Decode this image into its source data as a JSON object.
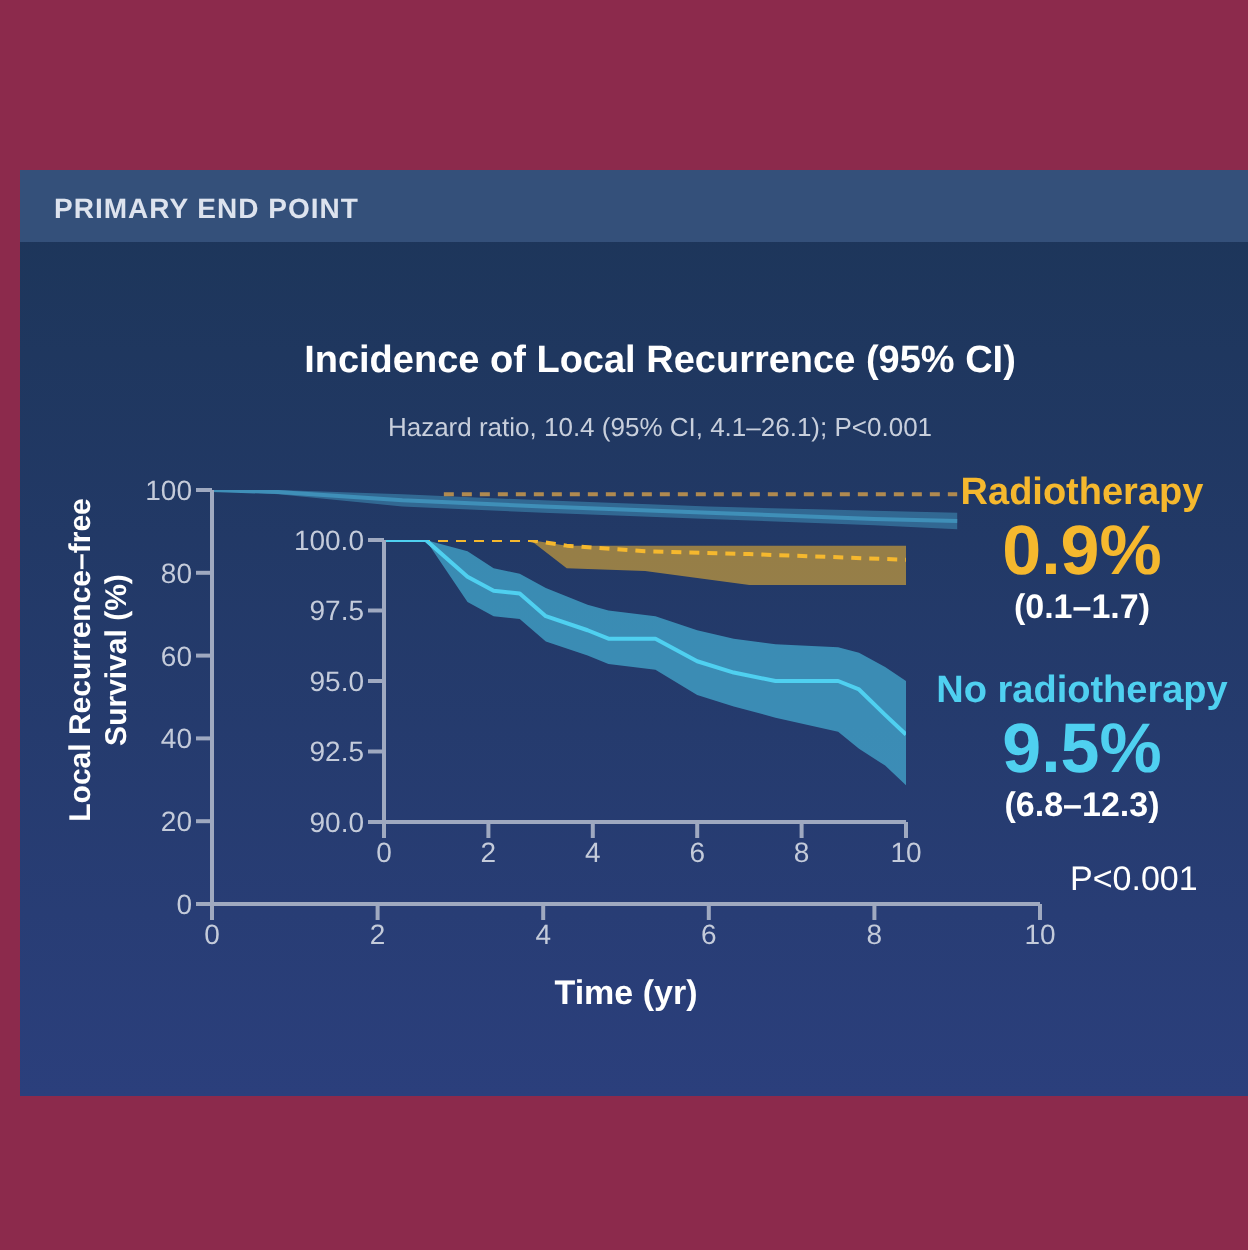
{
  "chart_data": [
    {
      "type": "line",
      "title": "Incidence of Local Recurrence (95% CI)",
      "subtitle": "Hazard ratio, 10.4 (95% CI, 4.1–26.1); P<0.001",
      "xlabel": "Time (yr)",
      "ylabel": "Local Recurrence–free Survival (%)",
      "xlim": [
        0,
        10
      ],
      "xticks": [
        0,
        2,
        4,
        6,
        8,
        10
      ],
      "ylim": [
        0,
        100
      ],
      "yticks": [
        0,
        20,
        40,
        60,
        80,
        100
      ],
      "marker": "none",
      "annotations": [
        "PRIMARY END POINT",
        "P<0.001"
      ],
      "series": [
        {
          "color": "#b08a50",
          "line_style": "dashed",
          "x": [
            2.8,
            9
          ],
          "values": [
            99,
            99
          ]
        },
        {
          "color": "#3f8fb8",
          "line_style": "solid",
          "x": [
            0,
            0.8,
            2.3,
            4,
            6,
            8,
            9
          ],
          "values": [
            100,
            99.5,
            97.5,
            96,
            94.5,
            93,
            92.5
          ],
          "lower": [
            100,
            99,
            96,
            94.5,
            93,
            91.5,
            90.5
          ],
          "upper": [
            100,
            100,
            99,
            97.5,
            96,
            95,
            94.5
          ]
        }
      ]
    },
    {
      "type": "line",
      "xlim": [
        0,
        10
      ],
      "xticks": [
        0,
        2,
        4,
        6,
        8,
        10
      ],
      "ylim": [
        90,
        100
      ],
      "yticks": [
        {
          "value": 90,
          "label": "90.0"
        },
        {
          "value": 92.5,
          "label": "92.5"
        },
        {
          "value": 95,
          "label": "95.0"
        },
        {
          "value": 97.5,
          "label": "97.5"
        },
        {
          "value": 100,
          "label": "100.0"
        }
      ],
      "marker": "none",
      "annotations": [
        "0.9%",
        "(0.1–1.7)",
        "9.5%",
        "(6.8–12.3)"
      ],
      "series": [
        {
          "name": "Radiotherapy",
          "color": "#f5b82e",
          "line_style": "dashed",
          "x": [
            0,
            2.8,
            3.5,
            5,
            7,
            10
          ],
          "values": [
            100,
            100,
            99.8,
            99.6,
            99.5,
            99.3
          ],
          "lower": [
            100,
            100,
            99,
            98.9,
            98.4,
            98.4
          ],
          "upper": [
            100,
            100,
            99.8,
            99.8,
            99.8,
            99.8
          ]
        },
        {
          "name": "No radiotherapy",
          "color": "#4fd0f0",
          "line_style": "solid",
          "x": [
            0,
            0.8,
            1.6,
            2.1,
            2.6,
            3.1,
            3.9,
            4.3,
            5.2,
            6,
            6.7,
            7.5,
            8.7,
            9.1,
            9.6,
            10
          ],
          "values": [
            100,
            100,
            98.7,
            98.2,
            98.1,
            97.3,
            96.8,
            96.5,
            96.5,
            95.7,
            95.3,
            95,
            95,
            94.7,
            93.8,
            93.1
          ],
          "lower": [
            100,
            100,
            97.8,
            97.3,
            97.2,
            96.4,
            95.9,
            95.6,
            95.4,
            94.5,
            94.1,
            93.7,
            93.2,
            92.6,
            92,
            91.3
          ],
          "upper": [
            100,
            100,
            99.6,
            99,
            98.8,
            98.3,
            97.7,
            97.5,
            97.3,
            96.8,
            96.5,
            96.3,
            96.2,
            96,
            95.5,
            95
          ]
        }
      ]
    }
  ]
}
